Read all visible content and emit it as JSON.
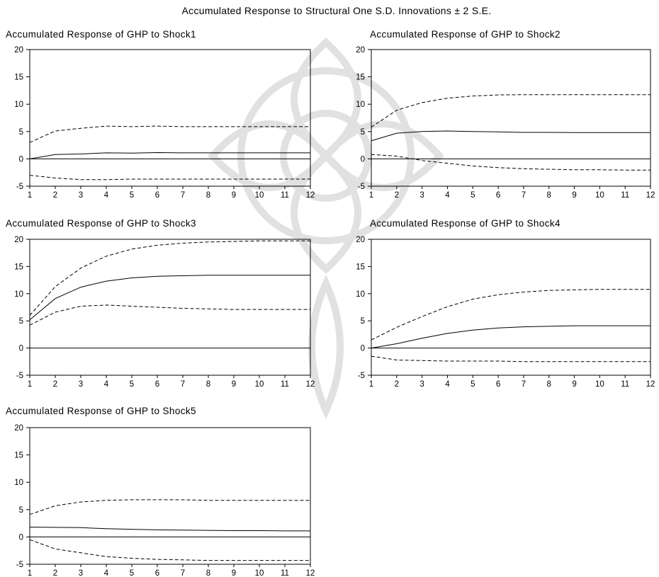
{
  "title": "Accumulated Response to Structural One S.D. Innovations ± 2 S.E.",
  "chart_data": [
    {
      "type": "line",
      "title": "Accumulated Response of GHP to Shock1",
      "x": [
        1,
        2,
        3,
        4,
        5,
        6,
        7,
        8,
        9,
        10,
        11,
        12
      ],
      "ylim": [
        -5,
        20
      ],
      "yticks": [
        -5,
        0,
        5,
        10,
        15,
        20
      ],
      "series": [
        {
          "values": [
            0.0,
            0.8,
            0.9,
            1.1,
            1.05,
            1.15,
            1.1,
            1.1,
            1.1,
            1.1,
            1.1,
            1.1
          ],
          "style": "solid"
        },
        {
          "values": [
            3.0,
            5.1,
            5.6,
            6.0,
            5.9,
            6.0,
            5.9,
            5.9,
            5.9,
            5.9,
            5.9,
            5.9
          ],
          "style": "dashed"
        },
        {
          "values": [
            -3.0,
            -3.5,
            -3.8,
            -3.8,
            -3.7,
            -3.7,
            -3.7,
            -3.7,
            -3.7,
            -3.7,
            -3.7,
            -3.7
          ],
          "style": "dashed"
        },
        {
          "values": [
            0,
            0,
            0,
            0,
            0,
            0,
            0,
            0,
            0,
            0,
            0,
            0
          ],
          "style": "zero"
        }
      ]
    },
    {
      "type": "line",
      "title": "Accumulated Response of GHP to Shock2",
      "x": [
        1,
        2,
        3,
        4,
        5,
        6,
        7,
        8,
        9,
        10,
        11,
        12
      ],
      "ylim": [
        -5,
        20
      ],
      "yticks": [
        -5,
        0,
        5,
        10,
        15,
        20
      ],
      "series": [
        {
          "values": [
            3.3,
            4.7,
            5.0,
            5.1,
            5.0,
            4.95,
            4.85,
            4.85,
            4.8,
            4.8,
            4.8,
            4.8
          ],
          "style": "solid"
        },
        {
          "values": [
            5.8,
            8.9,
            10.3,
            11.1,
            11.5,
            11.7,
            11.75,
            11.75,
            11.75,
            11.75,
            11.75,
            11.75
          ],
          "style": "dashed"
        },
        {
          "values": [
            0.8,
            0.5,
            -0.3,
            -0.8,
            -1.3,
            -1.6,
            -1.8,
            -1.9,
            -2.0,
            -2.0,
            -2.05,
            -2.05
          ],
          "style": "dashed"
        },
        {
          "values": [
            0,
            0,
            0,
            0,
            0,
            0,
            0,
            0,
            0,
            0,
            0,
            0
          ],
          "style": "zero"
        }
      ]
    },
    {
      "type": "line",
      "title": "Accumulated Response of GHP to Shock3",
      "x": [
        1,
        2,
        3,
        4,
        5,
        6,
        7,
        8,
        9,
        10,
        11,
        12
      ],
      "ylim": [
        -5,
        20
      ],
      "yticks": [
        -5,
        0,
        5,
        10,
        15,
        20
      ],
      "series": [
        {
          "values": [
            5.2,
            9.1,
            11.2,
            12.3,
            12.9,
            13.2,
            13.3,
            13.4,
            13.4,
            13.4,
            13.4,
            13.4
          ],
          "style": "solid"
        },
        {
          "values": [
            6.0,
            11.3,
            14.7,
            16.9,
            18.2,
            18.9,
            19.3,
            19.5,
            19.6,
            19.7,
            19.7,
            19.7
          ],
          "style": "dashed"
        },
        {
          "values": [
            4.2,
            6.6,
            7.7,
            7.9,
            7.7,
            7.5,
            7.3,
            7.2,
            7.1,
            7.1,
            7.1,
            7.1
          ],
          "style": "dashed"
        },
        {
          "values": [
            0,
            0,
            0,
            0,
            0,
            0,
            0,
            0,
            0,
            0,
            0,
            0
          ],
          "style": "zero"
        }
      ]
    },
    {
      "type": "line",
      "title": "Accumulated Response of GHP to Shock4",
      "x": [
        1,
        2,
        3,
        4,
        5,
        6,
        7,
        8,
        9,
        10,
        11,
        12
      ],
      "ylim": [
        -5,
        20
      ],
      "yticks": [
        -5,
        0,
        5,
        10,
        15,
        20
      ],
      "series": [
        {
          "values": [
            0.0,
            0.8,
            1.8,
            2.7,
            3.3,
            3.7,
            3.9,
            4.0,
            4.1,
            4.1,
            4.1,
            4.1
          ],
          "style": "solid"
        },
        {
          "values": [
            1.5,
            3.8,
            5.8,
            7.6,
            9.0,
            9.8,
            10.3,
            10.6,
            10.7,
            10.8,
            10.8,
            10.8
          ],
          "style": "dashed"
        },
        {
          "values": [
            -1.5,
            -2.2,
            -2.3,
            -2.4,
            -2.4,
            -2.4,
            -2.5,
            -2.5,
            -2.5,
            -2.5,
            -2.5,
            -2.5
          ],
          "style": "dashed"
        },
        {
          "values": [
            0,
            0,
            0,
            0,
            0,
            0,
            0,
            0,
            0,
            0,
            0,
            0
          ],
          "style": "zero"
        }
      ]
    },
    {
      "type": "line",
      "title": "Accumulated Response of GHP to Shock5",
      "x": [
        1,
        2,
        3,
        4,
        5,
        6,
        7,
        8,
        9,
        10,
        11,
        12
      ],
      "ylim": [
        -5,
        20
      ],
      "yticks": [
        -5,
        0,
        5,
        10,
        15,
        20
      ],
      "series": [
        {
          "values": [
            1.8,
            1.75,
            1.7,
            1.5,
            1.4,
            1.3,
            1.25,
            1.2,
            1.15,
            1.15,
            1.1,
            1.1
          ],
          "style": "solid"
        },
        {
          "values": [
            4.1,
            5.7,
            6.4,
            6.7,
            6.8,
            6.8,
            6.8,
            6.7,
            6.7,
            6.7,
            6.7,
            6.7
          ],
          "style": "dashed"
        },
        {
          "values": [
            -0.5,
            -2.2,
            -2.9,
            -3.6,
            -3.9,
            -4.1,
            -4.2,
            -4.3,
            -4.3,
            -4.3,
            -4.3,
            -4.3
          ],
          "style": "dashed"
        },
        {
          "values": [
            0,
            0,
            0,
            0,
            0,
            0,
            0,
            0,
            0,
            0,
            0,
            0
          ],
          "style": "zero"
        }
      ]
    }
  ]
}
